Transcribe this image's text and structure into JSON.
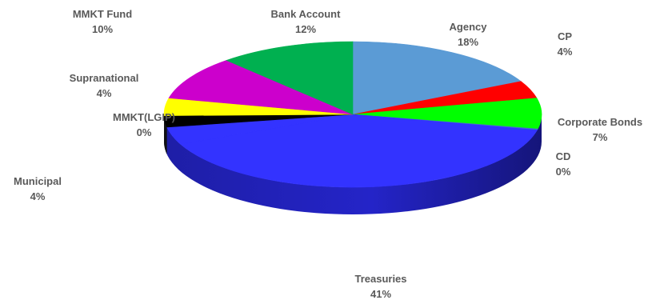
{
  "chart_data": {
    "type": "pie",
    "three_d": true,
    "title": "",
    "legend": "none",
    "start_angle_deg": 0,
    "slices": [
      {
        "label": "Agency",
        "value": 18,
        "value_label": "18%",
        "color": "#5B9BD5"
      },
      {
        "label": "CP",
        "value": 4,
        "value_label": "4%",
        "color": "#FF0000"
      },
      {
        "label": "Corporate Bonds",
        "value": 7,
        "value_label": "7%",
        "color": "#00FF00"
      },
      {
        "label": "CD",
        "value": 0,
        "value_label": "0%",
        "color": "#4472C4"
      },
      {
        "label": "Treasuries",
        "value": 41,
        "value_label": "41%",
        "color": "#3333FF"
      },
      {
        "label": "Municipal",
        "value": 4,
        "value_label": "4%",
        "color": "#3333FF"
      },
      {
        "label": "MMKT(LGIP)",
        "value": 0,
        "value_label": "0%",
        "color": "#000000"
      },
      {
        "label": "Supranational",
        "value": 4,
        "value_label": "4%",
        "color": "#FFFF00"
      },
      {
        "label": "MMKT Fund",
        "value": 10,
        "value_label": "10%",
        "color": "#CC00CC"
      },
      {
        "label": "Bank Account",
        "value": 12,
        "value_label": "12%",
        "color": "#00B050"
      }
    ]
  }
}
